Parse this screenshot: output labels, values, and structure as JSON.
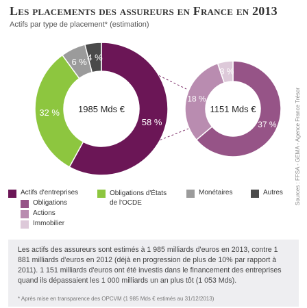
{
  "title": "Les placements des assureurs en France en 2013",
  "subtitle": "Actifs par type de placement* (estimation)",
  "source": "Sources : FFSA - GEMA - Agence France Trésor",
  "note": "Les actifs des assureurs sont estimés à 1 985 milliards d'euros en 2013, contre 1 881 milliards d'euros en 2012 (déjà en progression de plus de 10% par rapport à 2011). 1 151 milliards d'euros ont été investis dans le financement des entreprises quand ils dépassaient les 1 000 milliards un an plus tôt (1 053 Mds).",
  "footnote": "* Après mise en transparence des OPCVM (1 985 Mds € estimés au 31/12/2013)",
  "legend": {
    "main": [
      {
        "label": "Actifs d'entreprises",
        "color": "#6b1656"
      },
      {
        "label": "Obligations d'États de l'OCDE",
        "color": "#8dc63f"
      },
      {
        "label": "Monétaires",
        "color": "#9b9b9b"
      },
      {
        "label": "Autres",
        "color": "#4a4a4a"
      }
    ],
    "sub": [
      {
        "label": "Obligations",
        "color": "#965487"
      },
      {
        "label": "Actions",
        "color": "#b98cb0"
      },
      {
        "label": "Immobilier",
        "color": "#ddc9d9"
      }
    ]
  },
  "chart_data": [
    {
      "type": "pie",
      "center_label": "1985 Mds €",
      "slices": [
        {
          "name": "Actifs d'entreprises",
          "value": 58,
          "label": "58 %",
          "color": "#6b1656"
        },
        {
          "name": "Obligations d'États de l'OCDE",
          "value": 32,
          "label": "32 %",
          "color": "#8dc63f"
        },
        {
          "name": "Monétaires",
          "value": 6,
          "label": "6 %",
          "color": "#9b9b9b"
        },
        {
          "name": "Autres",
          "value": 4,
          "label": "4 %",
          "color": "#4a4a4a"
        }
      ]
    },
    {
      "type": "pie",
      "center_label": "1151 Mds €",
      "slices": [
        {
          "name": "Obligations",
          "value": 37,
          "label": "37 %",
          "color": "#965487"
        },
        {
          "name": "Actions",
          "value": 18,
          "label": "18 %",
          "color": "#b98cb0"
        },
        {
          "name": "Immobilier",
          "value": 3,
          "label": "3 %",
          "color": "#ddc9d9"
        }
      ]
    }
  ]
}
